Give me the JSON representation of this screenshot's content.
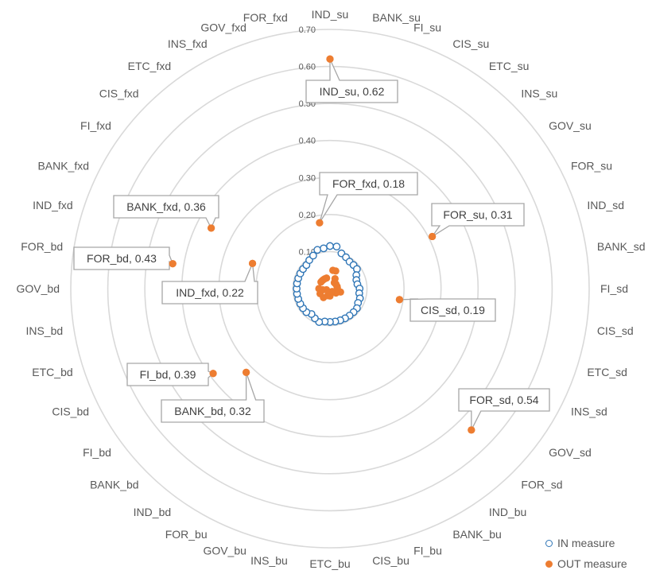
{
  "chart_data": {
    "type": "radar",
    "title": "",
    "rmax": 0.7,
    "ticks": [
      {
        "value": 0.1,
        "label": "0.10"
      },
      {
        "value": 0.2,
        "label": "0.20"
      },
      {
        "value": 0.3,
        "label": "0.30"
      },
      {
        "value": 0.4,
        "label": "0.40"
      },
      {
        "value": 0.5,
        "label": "0.50"
      },
      {
        "value": 0.6,
        "label": "0.60"
      },
      {
        "value": 0.7,
        "label": "0.70"
      }
    ],
    "zero_label": "-",
    "categories": [
      "IND_su",
      "BANK_su",
      "FI_su",
      "CIS_su",
      "ETC_su",
      "INS_su",
      "GOV_su",
      "FOR_su",
      "IND_sd",
      "BANK_sd",
      "FI_sd",
      "CIS_sd",
      "ETC_sd",
      "INS_sd",
      "GOV_sd",
      "FOR_sd",
      "IND_bu",
      "BANK_bu",
      "FI_bu",
      "CIS_bu",
      "ETC_bu",
      "INS_bu",
      "GOV_bu",
      "FOR_bu",
      "IND_bd",
      "BANK_bd",
      "FI_bd",
      "CIS_bd",
      "ETC_bd",
      "INS_bd",
      "GOV_bd",
      "FOR_bd",
      "IND_fxd",
      "BANK_fxd",
      "FI_fxd",
      "CIS_fxd",
      "ETC_fxd",
      "INS_fxd",
      "GOV_fxd",
      "FOR_fxd"
    ],
    "series": [
      {
        "name": "IN measure",
        "marker": "hollow-circle",
        "color": "#2E75B6",
        "values": [
          0.115,
          0.115,
          0.1,
          0.095,
          0.09,
          0.09,
          0.09,
          0.08,
          0.075,
          0.075,
          0.08,
          0.08,
          0.085,
          0.085,
          0.09,
          0.09,
          0.09,
          0.09,
          0.09,
          0.09,
          0.09,
          0.09,
          0.095,
          0.09,
          0.085,
          0.09,
          0.09,
          0.09,
          0.09,
          0.09,
          0.09,
          0.09,
          0.09,
          0.09,
          0.09,
          0.09,
          0.095,
          0.1,
          0.11,
          0.11
        ]
      },
      {
        "name": "OUT measure",
        "marker": "filled-circle",
        "color": "#ED7D31",
        "values": [
          0.62,
          0.05,
          0.05,
          0.03,
          0.02,
          0.02,
          0.02,
          0.31,
          0.02,
          0.02,
          0.02,
          0.19,
          0.03,
          0.02,
          0.02,
          0.54,
          0.01,
          0.01,
          0.01,
          0.01,
          0.02,
          0.01,
          0.02,
          0.01,
          0.03,
          0.32,
          0.39,
          0.03,
          0.01,
          0.02,
          0.03,
          0.43,
          0.22,
          0.36,
          0.03,
          0.03,
          0.03,
          0.03,
          0.03,
          0.18
        ]
      }
    ],
    "data_labels": [
      {
        "label": "IND_su, 0.62"
      },
      {
        "label": "FOR_fxd, 0.18"
      },
      {
        "label": "FOR_su, 0.31"
      },
      {
        "label": "BANK_fxd, 0.36"
      },
      {
        "label": "FOR_bd, 0.43"
      },
      {
        "label": "IND_fxd, 0.22"
      },
      {
        "label": "CIS_sd, 0.19"
      },
      {
        "label": "FI_bd, 0.39"
      },
      {
        "label": "BANK_bd, 0.32"
      },
      {
        "label": "FOR_sd, 0.54"
      }
    ],
    "legend_position": "bottom-right",
    "grid": true
  },
  "legend": {
    "in_label": "IN measure",
    "out_label": "OUT measure"
  },
  "colors": {
    "in": "#2E75B6",
    "out": "#ED7D31",
    "grid": "#D9D9D9",
    "text": "#595959"
  }
}
